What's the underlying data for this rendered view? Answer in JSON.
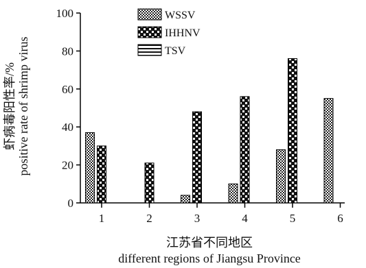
{
  "chart_data": {
    "type": "bar",
    "categories": [
      "1",
      "2",
      "3",
      "4",
      "5",
      "6"
    ],
    "series": [
      {
        "name": "WSSV",
        "values": [
          37,
          0,
          4,
          10,
          28,
          55
        ]
      },
      {
        "name": "IHHNV",
        "values": [
          30,
          21,
          48,
          56,
          76,
          0
        ]
      },
      {
        "name": "TSV",
        "values": [
          0,
          0,
          0,
          0,
          0,
          0
        ]
      }
    ],
    "ylim": [
      0,
      100
    ],
    "yticks": [
      "0",
      "20",
      "40",
      "60",
      "80",
      "100"
    ],
    "ylabel_line1": "虾病毒阳性率/%",
    "ylabel_line2": "positive rate of shrimp virus",
    "xlabel_line1": "江苏省不同地区",
    "xlabel_line2": "different regions of Jiangsu Province",
    "legend_position": "top-center"
  }
}
